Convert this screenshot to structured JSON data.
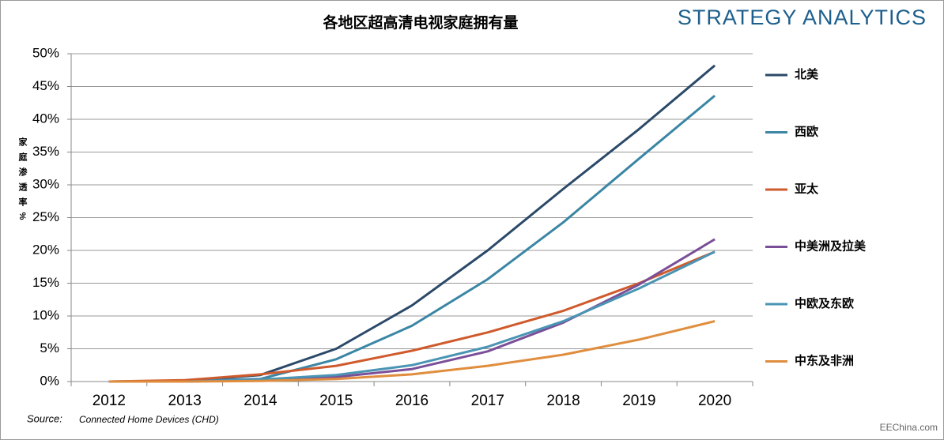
{
  "chart_data": {
    "type": "line",
    "title": "各地区超高清电视家庭拥有量",
    "brand": "STRATEGY ANALYTICS",
    "y_label": "家庭渗透率%",
    "source_label": "Source:",
    "source": "Connected Home Devices (CHD)",
    "watermark": "EEChina.com",
    "categories": [
      "2012",
      "2013",
      "2014",
      "2015",
      "2016",
      "2017",
      "2018",
      "2019",
      "2020"
    ],
    "ylim": [
      0,
      50
    ],
    "yticks": [
      {
        "value": 0,
        "label": "0%"
      },
      {
        "value": 5,
        "label": "5%"
      },
      {
        "value": 10,
        "label": "10%"
      },
      {
        "value": 15,
        "label": "15%"
      },
      {
        "value": 20,
        "label": "20%"
      },
      {
        "value": 25,
        "label": "25%"
      },
      {
        "value": 30,
        "label": "30%"
      },
      {
        "value": 35,
        "label": "35%"
      },
      {
        "value": 40,
        "label": "40%"
      },
      {
        "value": 45,
        "label": "45%"
      },
      {
        "value": 50,
        "label": "50%"
      }
    ],
    "grid": true,
    "legend": "right",
    "series": [
      {
        "name": "北美",
        "color": "#2b4968",
        "values": [
          0,
          0.1,
          1.0,
          5.0,
          11.6,
          20.0,
          29.4,
          38.5,
          48.2
        ]
      },
      {
        "name": "西欧",
        "color": "#3a86a4",
        "values": [
          0,
          0.1,
          0.4,
          3.4,
          8.5,
          15.6,
          24.3,
          34.0,
          43.6
        ]
      },
      {
        "name": "亚太",
        "color": "#cf5a2c",
        "values": [
          0,
          0.2,
          1.1,
          2.4,
          4.7,
          7.5,
          10.8,
          15.0,
          19.8
        ]
      },
      {
        "name": "中美洲及拉美",
        "color": "#7a4f98",
        "values": [
          0,
          0,
          0.3,
          0.7,
          1.9,
          4.6,
          9.0,
          14.8,
          21.7
        ]
      },
      {
        "name": "中欧及东欧",
        "color": "#4a94b4",
        "values": [
          0,
          0,
          0.3,
          1.0,
          2.5,
          5.3,
          9.2,
          14.2,
          19.8
        ]
      },
      {
        "name": "中东及非洲",
        "color": "#e08d3e",
        "values": [
          0,
          0,
          0.1,
          0.4,
          1.1,
          2.4,
          4.1,
          6.4,
          9.2
        ]
      }
    ]
  }
}
